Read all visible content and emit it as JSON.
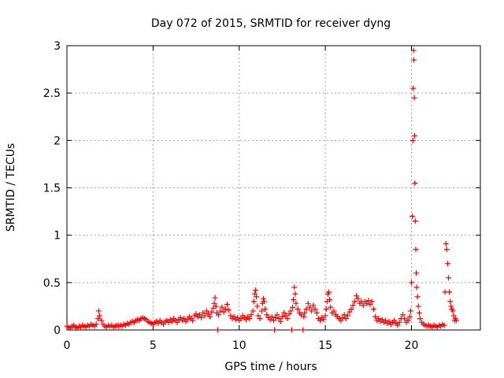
{
  "chart_data": {
    "type": "scatter",
    "title": "Day 072 of 2015, SRMTID for receiver dyng",
    "xlabel": "GPS time / hours",
    "ylabel": "SRMTID / TECUs",
    "xlim": [
      0,
      24
    ],
    "ylim": [
      0,
      3
    ],
    "xticks": [
      0,
      5,
      10,
      15,
      20
    ],
    "yticks": [
      0,
      0.5,
      1,
      1.5,
      2,
      2.5,
      3
    ],
    "grid": true,
    "legend": "none",
    "marker": "plus",
    "color": "#ff0000",
    "series": [
      {
        "points": [
          [
            0.0,
            0.04
          ],
          [
            0.1,
            0.03
          ],
          [
            0.2,
            0.02
          ],
          [
            0.3,
            0.04
          ],
          [
            0.4,
            0.05
          ],
          [
            0.5,
            0.03
          ],
          [
            0.6,
            0.02
          ],
          [
            0.7,
            0.04
          ],
          [
            0.8,
            0.03
          ],
          [
            0.9,
            0.05
          ],
          [
            1.0,
            0.04
          ],
          [
            1.1,
            0.03
          ],
          [
            1.2,
            0.05
          ],
          [
            1.3,
            0.04
          ],
          [
            1.4,
            0.06
          ],
          [
            1.5,
            0.05
          ],
          [
            1.6,
            0.04
          ],
          [
            1.7,
            0.06
          ],
          [
            1.8,
            0.12
          ],
          [
            1.85,
            0.2
          ],
          [
            1.9,
            0.15
          ],
          [
            2.0,
            0.1
          ],
          [
            2.1,
            0.06
          ],
          [
            2.2,
            0.04
          ],
          [
            2.3,
            0.03
          ],
          [
            2.4,
            0.05
          ],
          [
            2.5,
            0.04
          ],
          [
            2.6,
            0.05
          ],
          [
            2.7,
            0.03
          ],
          [
            2.8,
            0.04
          ],
          [
            2.9,
            0.05
          ],
          [
            3.0,
            0.04
          ],
          [
            3.1,
            0.05
          ],
          [
            3.2,
            0.04
          ],
          [
            3.3,
            0.06
          ],
          [
            3.4,
            0.05
          ],
          [
            3.5,
            0.07
          ],
          [
            3.6,
            0.06
          ],
          [
            3.7,
            0.08
          ],
          [
            3.8,
            0.09
          ],
          [
            3.9,
            0.08
          ],
          [
            4.0,
            0.1
          ],
          [
            4.1,
            0.11
          ],
          [
            4.2,
            0.1
          ],
          [
            4.3,
            0.12
          ],
          [
            4.4,
            0.13
          ],
          [
            4.5,
            0.12
          ],
          [
            4.6,
            0.11
          ],
          [
            4.7,
            0.09
          ],
          [
            4.8,
            0.08
          ],
          [
            4.9,
            0.07
          ],
          [
            5.0,
            0.06
          ],
          [
            5.1,
            0.08
          ],
          [
            5.2,
            0.09
          ],
          [
            5.3,
            0.07
          ],
          [
            5.4,
            0.1
          ],
          [
            5.5,
            0.08
          ],
          [
            5.6,
            0.06
          ],
          [
            5.7,
            0.09
          ],
          [
            5.8,
            0.1
          ],
          [
            5.9,
            0.08
          ],
          [
            6.0,
            0.11
          ],
          [
            6.1,
            0.09
          ],
          [
            6.2,
            0.12
          ],
          [
            6.3,
            0.1
          ],
          [
            6.4,
            0.08
          ],
          [
            6.5,
            0.11
          ],
          [
            6.6,
            0.13
          ],
          [
            6.7,
            0.1
          ],
          [
            6.8,
            0.12
          ],
          [
            6.9,
            0.09
          ],
          [
            7.0,
            0.11
          ],
          [
            7.1,
            0.14
          ],
          [
            7.2,
            0.12
          ],
          [
            7.3,
            0.1
          ],
          [
            7.4,
            0.15
          ],
          [
            7.5,
            0.17
          ],
          [
            7.6,
            0.14
          ],
          [
            7.7,
            0.16
          ],
          [
            7.8,
            0.13
          ],
          [
            7.9,
            0.18
          ],
          [
            8.0,
            0.15
          ],
          [
            8.1,
            0.2
          ],
          [
            8.2,
            0.17
          ],
          [
            8.3,
            0.14
          ],
          [
            8.4,
            0.19
          ],
          [
            8.5,
            0.23
          ],
          [
            8.55,
            0.28
          ],
          [
            8.6,
            0.34
          ],
          [
            8.65,
            0.25
          ],
          [
            8.7,
            0.18
          ],
          [
            8.75,
            0.0
          ],
          [
            8.8,
            0.16
          ],
          [
            8.9,
            0.2
          ],
          [
            9.0,
            0.24
          ],
          [
            9.1,
            0.19
          ],
          [
            9.2,
            0.22
          ],
          [
            9.3,
            0.27
          ],
          [
            9.4,
            0.21
          ],
          [
            9.5,
            0.15
          ],
          [
            9.6,
            0.12
          ],
          [
            9.7,
            0.14
          ],
          [
            9.8,
            0.11
          ],
          [
            9.9,
            0.13
          ],
          [
            10.0,
            0.1
          ],
          [
            10.1,
            0.12
          ],
          [
            10.2,
            0.15
          ],
          [
            10.3,
            0.13
          ],
          [
            10.4,
            0.11
          ],
          [
            10.5,
            0.14
          ],
          [
            10.6,
            0.12
          ],
          [
            10.7,
            0.16
          ],
          [
            10.8,
            0.2
          ],
          [
            10.85,
            0.3
          ],
          [
            10.9,
            0.38
          ],
          [
            10.95,
            0.42
          ],
          [
            11.0,
            0.35
          ],
          [
            11.05,
            0.25
          ],
          [
            11.1,
            0.15
          ],
          [
            11.2,
            0.12
          ],
          [
            11.3,
            0.2
          ],
          [
            11.35,
            0.28
          ],
          [
            11.4,
            0.33
          ],
          [
            11.45,
            0.3
          ],
          [
            11.5,
            0.22
          ],
          [
            11.6,
            0.16
          ],
          [
            11.7,
            0.13
          ],
          [
            11.8,
            0.11
          ],
          [
            11.9,
            0.14
          ],
          [
            12.0,
            0.1
          ],
          [
            12.05,
            0.0
          ],
          [
            12.1,
            0.13
          ],
          [
            12.2,
            0.16
          ],
          [
            12.3,
            0.12
          ],
          [
            12.4,
            0.09
          ],
          [
            12.5,
            0.14
          ],
          [
            12.6,
            0.18
          ],
          [
            12.7,
            0.15
          ],
          [
            12.8,
            0.12
          ],
          [
            12.9,
            0.17
          ],
          [
            13.0,
            0.2
          ],
          [
            13.05,
            0.0
          ],
          [
            13.1,
            0.24
          ],
          [
            13.15,
            0.32
          ],
          [
            13.2,
            0.45
          ],
          [
            13.25,
            0.38
          ],
          [
            13.3,
            0.28
          ],
          [
            13.4,
            0.22
          ],
          [
            13.5,
            0.18
          ],
          [
            13.6,
            0.16
          ],
          [
            13.7,
            0.0
          ],
          [
            13.75,
            0.14
          ],
          [
            13.8,
            0.18
          ],
          [
            13.9,
            0.22
          ],
          [
            14.0,
            0.28
          ],
          [
            14.1,
            0.24
          ],
          [
            14.2,
            0.2
          ],
          [
            14.3,
            0.26
          ],
          [
            14.4,
            0.22
          ],
          [
            14.5,
            0.18
          ],
          [
            14.6,
            0.12
          ],
          [
            14.7,
            0.1
          ],
          [
            14.8,
            0.13
          ],
          [
            14.9,
            0.11
          ],
          [
            15.0,
            0.15
          ],
          [
            15.05,
            0.22
          ],
          [
            15.1,
            0.3
          ],
          [
            15.15,
            0.38
          ],
          [
            15.2,
            0.4
          ],
          [
            15.25,
            0.32
          ],
          [
            15.3,
            0.24
          ],
          [
            15.4,
            0.18
          ],
          [
            15.5,
            0.2
          ],
          [
            15.6,
            0.16
          ],
          [
            15.7,
            0.14
          ],
          [
            15.8,
            0.12
          ],
          [
            15.9,
            0.1
          ],
          [
            16.0,
            0.13
          ],
          [
            16.1,
            0.16
          ],
          [
            16.2,
            0.12
          ],
          [
            16.3,
            0.15
          ],
          [
            16.4,
            0.19
          ],
          [
            16.5,
            0.22
          ],
          [
            16.6,
            0.26
          ],
          [
            16.7,
            0.3
          ],
          [
            16.8,
            0.36
          ],
          [
            16.9,
            0.33
          ],
          [
            17.0,
            0.28
          ],
          [
            17.1,
            0.3
          ],
          [
            17.2,
            0.26
          ],
          [
            17.3,
            0.3
          ],
          [
            17.4,
            0.28
          ],
          [
            17.5,
            0.31
          ],
          [
            17.6,
            0.27
          ],
          [
            17.7,
            0.3
          ],
          [
            17.8,
            0.22
          ],
          [
            17.9,
            0.14
          ],
          [
            18.0,
            0.1
          ],
          [
            18.1,
            0.12
          ],
          [
            18.2,
            0.09
          ],
          [
            18.3,
            0.11
          ],
          [
            18.4,
            0.08
          ],
          [
            18.5,
            0.1
          ],
          [
            18.6,
            0.07
          ],
          [
            18.7,
            0.09
          ],
          [
            18.8,
            0.06
          ],
          [
            18.9,
            0.08
          ],
          [
            19.0,
            0.1
          ],
          [
            19.1,
            0.07
          ],
          [
            19.2,
            0.05
          ],
          [
            19.3,
            0.08
          ],
          [
            19.4,
            0.12
          ],
          [
            19.5,
            0.16
          ],
          [
            19.6,
            0.12
          ],
          [
            19.7,
            0.08
          ],
          [
            19.8,
            0.1
          ],
          [
            19.9,
            0.14
          ],
          [
            19.95,
            0.2
          ],
          [
            20.0,
            0.5
          ],
          [
            20.05,
            1.2
          ],
          [
            20.08,
            2.0
          ],
          [
            20.1,
            2.55
          ],
          [
            20.12,
            2.95
          ],
          [
            20.14,
            2.85
          ],
          [
            20.16,
            2.45
          ],
          [
            20.18,
            2.05
          ],
          [
            20.2,
            1.55
          ],
          [
            20.22,
            1.15
          ],
          [
            20.25,
            0.85
          ],
          [
            20.28,
            0.6
          ],
          [
            20.3,
            0.45
          ],
          [
            20.35,
            0.35
          ],
          [
            20.4,
            0.25
          ],
          [
            20.45,
            0.18
          ],
          [
            20.5,
            0.12
          ],
          [
            20.6,
            0.08
          ],
          [
            20.7,
            0.06
          ],
          [
            20.8,
            0.05
          ],
          [
            20.9,
            0.04
          ],
          [
            21.0,
            0.05
          ],
          [
            21.1,
            0.04
          ],
          [
            21.2,
            0.03
          ],
          [
            21.3,
            0.05
          ],
          [
            21.4,
            0.04
          ],
          [
            21.5,
            0.03
          ],
          [
            21.6,
            0.05
          ],
          [
            21.7,
            0.04
          ],
          [
            21.8,
            0.06
          ],
          [
            21.9,
            0.05
          ],
          [
            21.95,
            0.4
          ],
          [
            22.0,
            0.91
          ],
          [
            22.05,
            0.85
          ],
          [
            22.1,
            0.7
          ],
          [
            22.15,
            0.55
          ],
          [
            22.2,
            0.4
          ],
          [
            22.25,
            0.3
          ],
          [
            22.3,
            0.25
          ],
          [
            22.35,
            0.22
          ],
          [
            22.4,
            0.2
          ],
          [
            22.45,
            0.15
          ],
          [
            22.5,
            0.1
          ],
          [
            22.55,
            0.12
          ],
          [
            22.6,
            0.1
          ]
        ]
      }
    ]
  }
}
